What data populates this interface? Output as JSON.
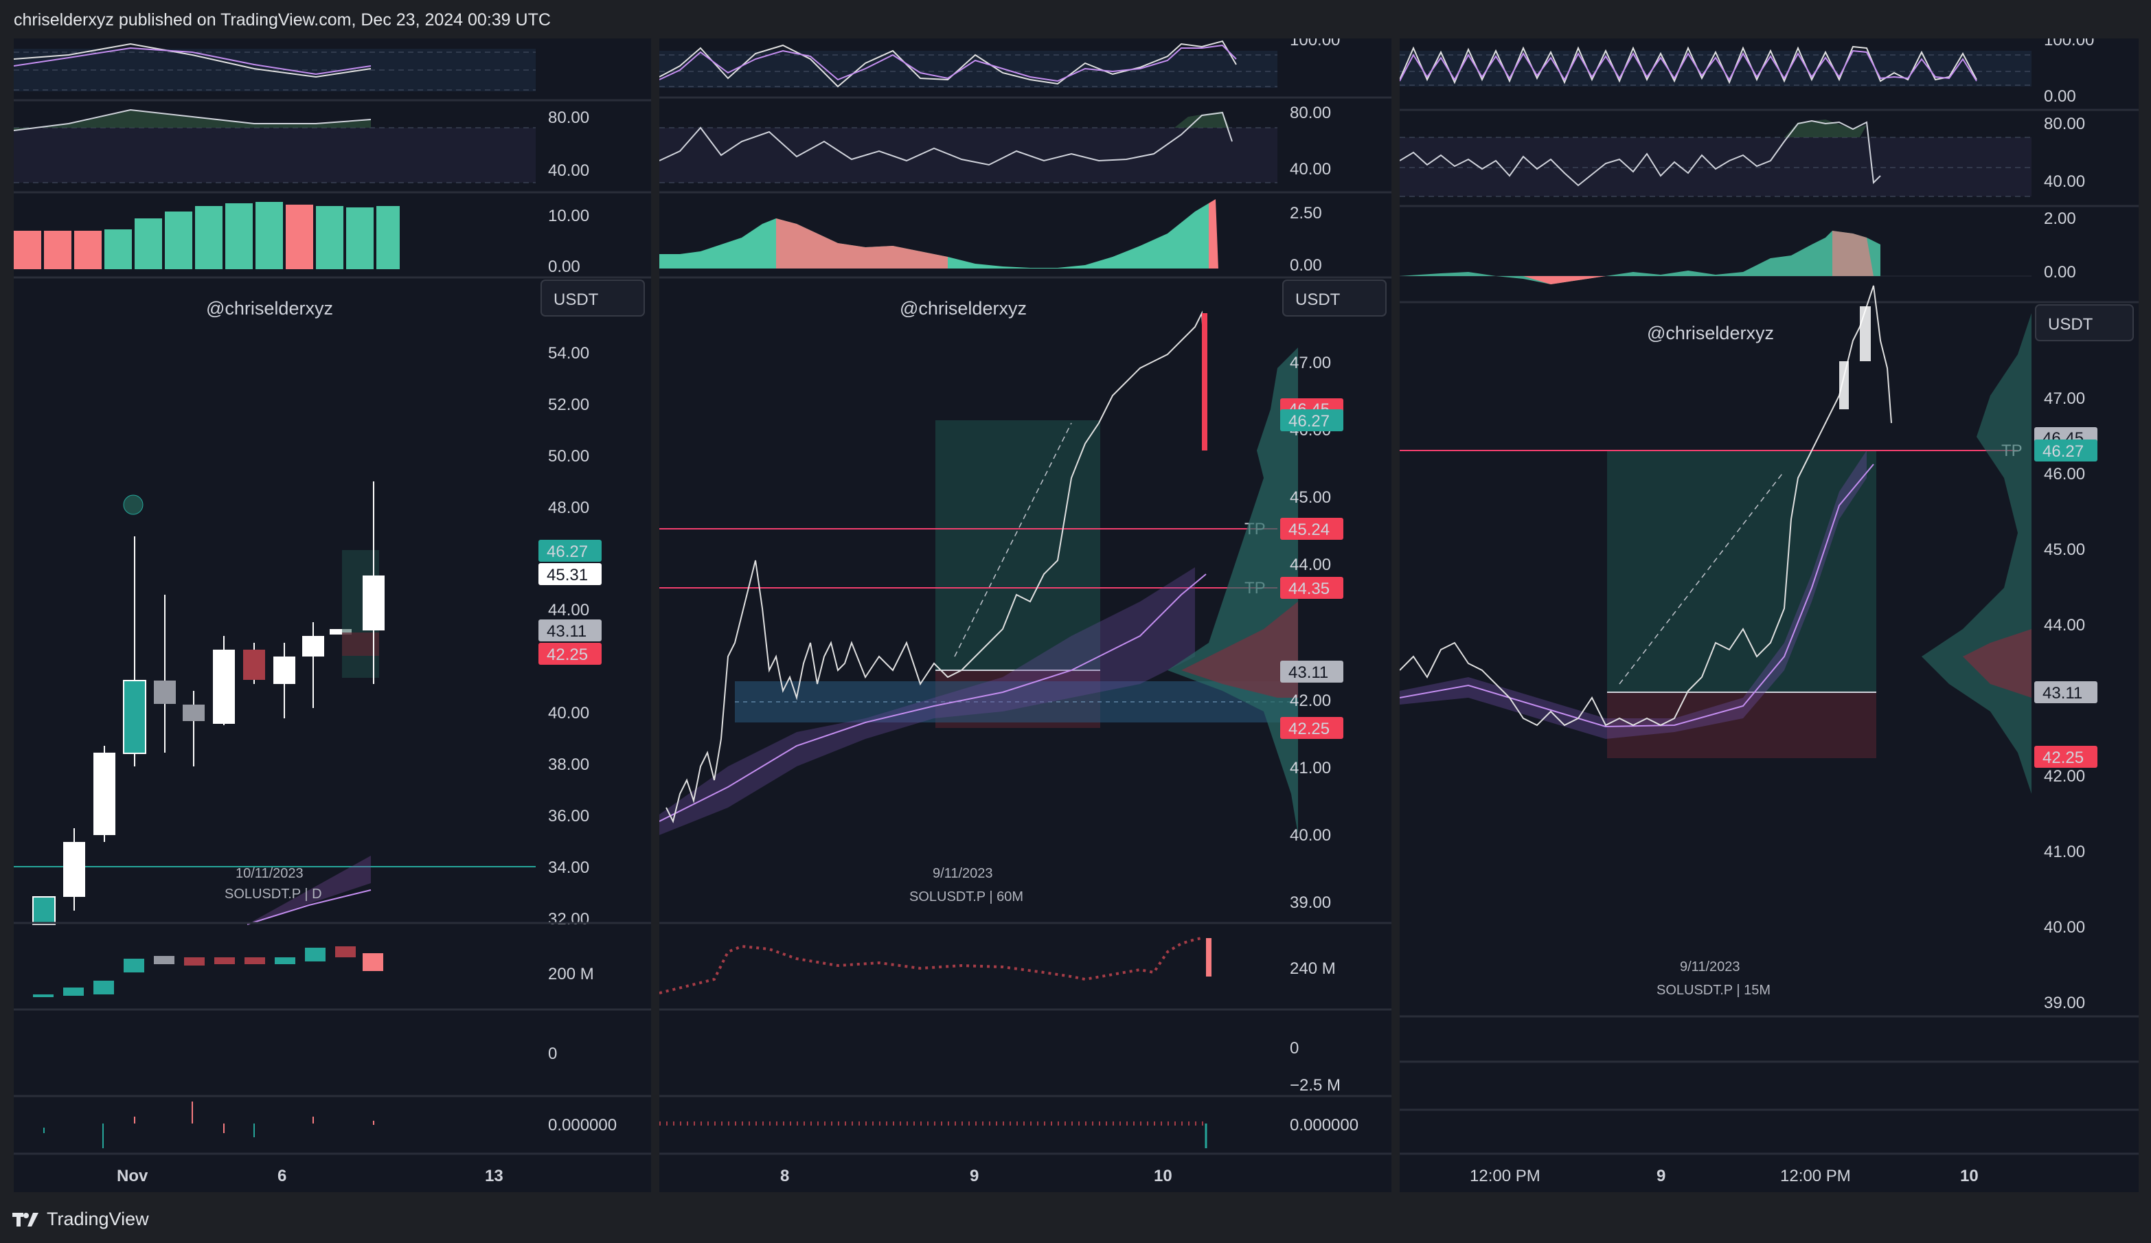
{
  "header": {
    "published_text": "chriselderxyz published on TradingView.com, Dec 23, 2024 00:39 UTC"
  },
  "footer": {
    "brand": "TradingView"
  },
  "colors": {
    "bull": "#26a69a",
    "bear": "#f7525f",
    "bg": "#131722",
    "tp_line": "#f23f6e",
    "ma": "#c48ef0",
    "grid": "#2a2e39"
  },
  "panels": [
    {
      "id": "daily",
      "watermark": "@chriselderxyz",
      "currency": "USDT",
      "date_label": "10/11/2023",
      "symbol_label": "SOLUSDT.P | D",
      "stoch_labels": [],
      "rsi_labels": [
        "80.00",
        "40.00"
      ],
      "macd_labels": [
        "10.00",
        "0.00"
      ],
      "price_axis": [
        "54.00",
        "52.00",
        "50.00",
        "48.00",
        "44.00",
        "40.00",
        "38.00",
        "36.00",
        "34.00",
        "32.00"
      ],
      "price_tags": [
        {
          "value": "46.27",
          "kind": "bull"
        },
        {
          "value": "45.31",
          "kind": "white"
        },
        {
          "value": "43.11",
          "kind": "gray"
        },
        {
          "value": "42.25",
          "kind": "bear"
        }
      ],
      "volume_label": "200 M",
      "osc_label": "0",
      "funding_label": "0.000000",
      "time_axis": [
        "Nov",
        "6",
        "13"
      ]
    },
    {
      "id": "hourly",
      "watermark": "@chriselderxyz",
      "currency": "USDT",
      "date_label": "9/11/2023",
      "symbol_label": "SOLUSDT.P | 60M",
      "stoch_labels": [
        "100.00"
      ],
      "rsi_labels": [
        "80.00",
        "40.00"
      ],
      "macd_labels": [
        "2.50",
        "0.00"
      ],
      "price_axis": [
        "47.00",
        "46.00",
        "45.00",
        "44.00",
        "42.00",
        "41.00",
        "40.00",
        "39.00"
      ],
      "price_tags": [
        {
          "value": "46.45",
          "kind": "bear"
        },
        {
          "value": "46.27",
          "kind": "bull"
        },
        {
          "value": "45.24",
          "kind": "bear"
        },
        {
          "value": "44.35",
          "kind": "bear"
        },
        {
          "value": "43.11",
          "kind": "gray"
        },
        {
          "value": "42.25",
          "kind": "bear"
        }
      ],
      "tp_labels": [
        "TP",
        "TP"
      ],
      "volume_label": "240 M",
      "osc_labels": [
        "0",
        "−2.5 M"
      ],
      "funding_label": "0.000000",
      "time_axis": [
        "8",
        "9",
        "10"
      ]
    },
    {
      "id": "m15",
      "watermark": "@chriselderxyz",
      "currency": "USDT",
      "date_label": "9/11/2023",
      "symbol_label": "SOLUSDT.P | 15M",
      "stoch_labels": [
        "100.00",
        "0.00"
      ],
      "rsi_labels": [
        "80.00",
        "40.00"
      ],
      "macd_labels": [
        "2.00",
        "0.00"
      ],
      "price_axis": [
        "47.00",
        "46.00",
        "45.00",
        "44.00",
        "42.00",
        "41.00",
        "40.00",
        "39.00"
      ],
      "price_tags": [
        {
          "value": "46.45",
          "kind": "gray"
        },
        {
          "value": "46.27",
          "kind": "bull"
        },
        {
          "value": "43.11",
          "kind": "gray"
        },
        {
          "value": "42.25",
          "kind": "bear"
        }
      ],
      "tp_labels": [
        "TP"
      ],
      "time_axis": [
        "12:00 PM",
        "9",
        "12:00 PM",
        "10"
      ]
    }
  ]
}
